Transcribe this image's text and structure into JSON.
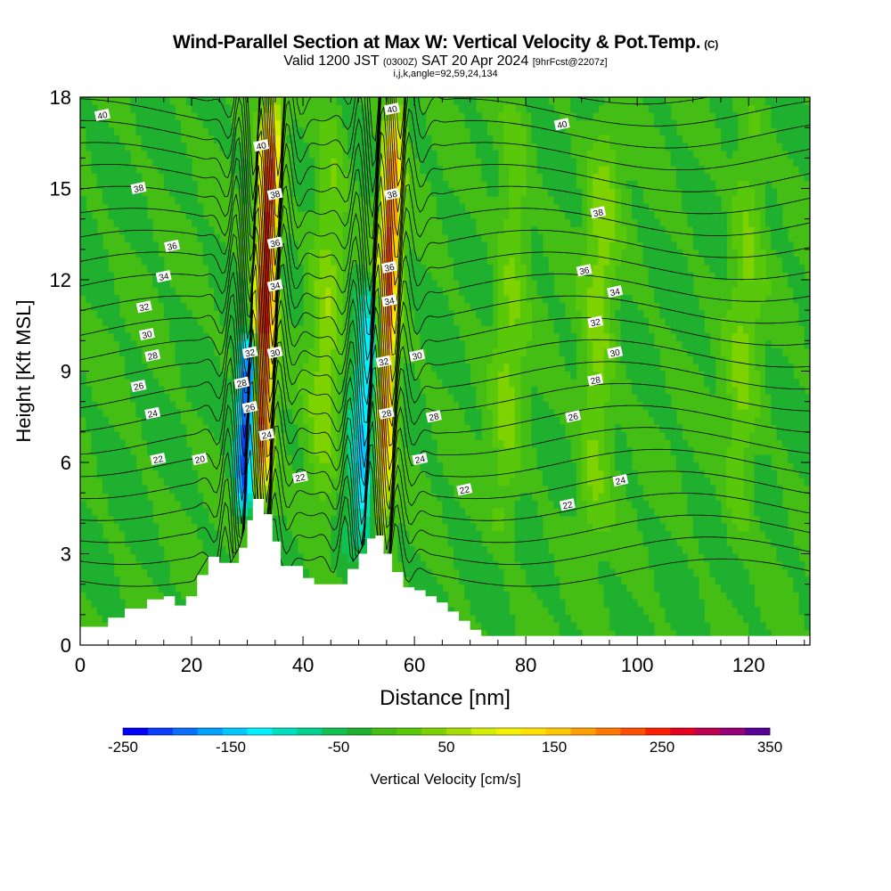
{
  "header": {
    "title": "Wind-Parallel Section at Max W: Vertical Velocity & Pot.Temp.",
    "copyright": "(C)",
    "valid_prefix": "Valid 1200 JST",
    "valid_utc": "(0300Z)",
    "valid_date": "SAT 20 Apr 2024",
    "forecast": "[9hrFcst@2207z]",
    "params": "i,j,k,angle=92,59,24,134"
  },
  "chart_data": {
    "type": "heatmap",
    "xlabel": "Distance [nm]",
    "ylabel": "Height [Kft MSL]",
    "xlim": [
      0,
      131
    ],
    "ylim": [
      0,
      18
    ],
    "x_ticks": [
      0,
      20,
      40,
      60,
      80,
      100,
      120
    ],
    "y_ticks": [
      0,
      3,
      6,
      9,
      12,
      15,
      18
    ],
    "colorbar": {
      "label": "Vertical Velocity [cm/s]",
      "range": [
        -250,
        350
      ],
      "bin_width": 25,
      "tick_labels": [
        "-250",
        "-150",
        "-50",
        "50",
        "150",
        "250",
        "350"
      ],
      "colors": [
        "#0000ff",
        "#0a3cff",
        "#0a6eff",
        "#00a0ff",
        "#00c8ff",
        "#00f0ff",
        "#00e0c0",
        "#00d090",
        "#10c050",
        "#20b030",
        "#44be14",
        "#5ac80a",
        "#7ed200",
        "#a8dc00",
        "#d2ee00",
        "#f0f000",
        "#ffe000",
        "#ffc800",
        "#ffa000",
        "#ff7800",
        "#ff5000",
        "#ff1e00",
        "#e60020",
        "#be0050",
        "#960078",
        "#5a0096"
      ]
    },
    "vertical_velocity_features": [
      {
        "name": "updraft core 1",
        "x": 33,
        "y_range": [
          4.5,
          18
        ],
        "max_cm_s": 300
      },
      {
        "name": "downdraft core 1",
        "x": 30.5,
        "y_range": [
          4.5,
          10
        ],
        "min_cm_s": -250
      },
      {
        "name": "updraft core 2",
        "x": 55,
        "y_range": [
          3.5,
          18
        ],
        "max_cm_s": 260
      },
      {
        "name": "downdraft core 2",
        "x": 52,
        "y_range": [
          3,
          12
        ],
        "min_cm_s": -130
      },
      {
        "name": "weak upward band",
        "x": 44,
        "y_range": [
          3,
          18
        ],
        "max_cm_s": 60
      },
      {
        "name": "weak upward band",
        "x": 77,
        "y_range": [
          3,
          18
        ],
        "max_cm_s": 50
      },
      {
        "name": "weak upward band",
        "x": 93,
        "y_range": [
          3,
          18
        ],
        "max_cm_s": 60
      },
      {
        "name": "weak upward band",
        "x": 119,
        "y_range": [
          3,
          18
        ],
        "max_cm_s": 50
      }
    ],
    "theta_contours": {
      "variable": "Potential Temperature",
      "units": "C",
      "interval": 1,
      "labeled_levels": [
        20,
        22,
        24,
        26,
        28,
        30,
        32,
        34,
        36,
        38,
        40
      ],
      "labels": [
        {
          "text": "40",
          "x": 4,
          "y": 17.4
        },
        {
          "text": "40",
          "x": 32.5,
          "y": 16.4
        },
        {
          "text": "40",
          "x": 56,
          "y": 17.6
        },
        {
          "text": "40",
          "x": 86.5,
          "y": 17.1
        },
        {
          "text": "38",
          "x": 10.5,
          "y": 15
        },
        {
          "text": "38",
          "x": 35,
          "y": 14.8
        },
        {
          "text": "38",
          "x": 56,
          "y": 14.8
        },
        {
          "text": "38",
          "x": 93,
          "y": 14.2
        },
        {
          "text": "36",
          "x": 16.5,
          "y": 13.1
        },
        {
          "text": "36",
          "x": 35,
          "y": 13.2
        },
        {
          "text": "36",
          "x": 55.5,
          "y": 12.4
        },
        {
          "text": "36",
          "x": 90.5,
          "y": 12.3
        },
        {
          "text": "34",
          "x": 15,
          "y": 12.1
        },
        {
          "text": "34",
          "x": 35,
          "y": 11.8
        },
        {
          "text": "34",
          "x": 55.5,
          "y": 11.3
        },
        {
          "text": "34",
          "x": 96,
          "y": 11.6
        },
        {
          "text": "32",
          "x": 11.5,
          "y": 11.1
        },
        {
          "text": "32",
          "x": 30.5,
          "y": 9.6
        },
        {
          "text": "32",
          "x": 54.5,
          "y": 9.3
        },
        {
          "text": "32",
          "x": 92.5,
          "y": 10.6
        },
        {
          "text": "30",
          "x": 12,
          "y": 10.2
        },
        {
          "text": "30",
          "x": 35,
          "y": 9.6
        },
        {
          "text": "30",
          "x": 60.5,
          "y": 9.5
        },
        {
          "text": "30",
          "x": 96,
          "y": 9.6
        },
        {
          "text": "28",
          "x": 13,
          "y": 9.5
        },
        {
          "text": "28",
          "x": 29,
          "y": 8.6
        },
        {
          "text": "28",
          "x": 55,
          "y": 7.6
        },
        {
          "text": "28",
          "x": 63.5,
          "y": 7.5
        },
        {
          "text": "28",
          "x": 92.5,
          "y": 8.7
        },
        {
          "text": "26",
          "x": 10.5,
          "y": 8.5
        },
        {
          "text": "26",
          "x": 30.5,
          "y": 7.8
        },
        {
          "text": "26",
          "x": 88.5,
          "y": 7.5
        },
        {
          "text": "24",
          "x": 13,
          "y": 7.6
        },
        {
          "text": "24",
          "x": 33.5,
          "y": 6.9
        },
        {
          "text": "24",
          "x": 61,
          "y": 6.1
        },
        {
          "text": "24",
          "x": 97,
          "y": 5.4
        },
        {
          "text": "22",
          "x": 14,
          "y": 6.1
        },
        {
          "text": "22",
          "x": 39.5,
          "y": 5.5
        },
        {
          "text": "22",
          "x": 69,
          "y": 5.1
        },
        {
          "text": "22",
          "x": 87.5,
          "y": 4.6
        },
        {
          "text": "20",
          "x": 21.5,
          "y": 6.1
        }
      ]
    },
    "terrain_top_kft": [
      {
        "x": 0,
        "h": 0.6
      },
      {
        "x": 5,
        "h": 0.9
      },
      {
        "x": 8,
        "h": 1.2
      },
      {
        "x": 12,
        "h": 1.5
      },
      {
        "x": 15,
        "h": 1.6
      },
      {
        "x": 17,
        "h": 1.3
      },
      {
        "x": 19,
        "h": 1.6
      },
      {
        "x": 21,
        "h": 2.3
      },
      {
        "x": 23,
        "h": 2.9
      },
      {
        "x": 25,
        "h": 2.7
      },
      {
        "x": 27,
        "h": 2.7
      },
      {
        "x": 28.5,
        "h": 3.2
      },
      {
        "x": 30,
        "h": 4.1
      },
      {
        "x": 31,
        "h": 4.8
      },
      {
        "x": 33,
        "h": 4.3
      },
      {
        "x": 34.5,
        "h": 3.4
      },
      {
        "x": 36,
        "h": 2.6
      },
      {
        "x": 40,
        "h": 2.2
      },
      {
        "x": 42,
        "h": 2.0
      },
      {
        "x": 46,
        "h": 2.0
      },
      {
        "x": 48,
        "h": 2.5
      },
      {
        "x": 50,
        "h": 3.0
      },
      {
        "x": 51.5,
        "h": 3.5
      },
      {
        "x": 53,
        "h": 3.6
      },
      {
        "x": 54.5,
        "h": 3.0
      },
      {
        "x": 56,
        "h": 2.4
      },
      {
        "x": 58,
        "h": 1.9
      },
      {
        "x": 60,
        "h": 1.8
      },
      {
        "x": 62,
        "h": 1.6
      },
      {
        "x": 64,
        "h": 1.4
      },
      {
        "x": 66,
        "h": 1.1
      },
      {
        "x": 68,
        "h": 0.8
      },
      {
        "x": 70,
        "h": 0.5
      },
      {
        "x": 72,
        "h": 0.3
      },
      {
        "x": 131,
        "h": 0.3
      }
    ]
  }
}
